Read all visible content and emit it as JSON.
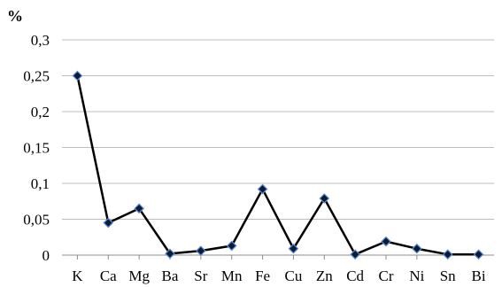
{
  "chart_data": {
    "type": "line",
    "unit_label": "%",
    "categories": [
      "K",
      "Ca",
      "Mg",
      "Ba",
      "Sr",
      "Mn",
      "Fe",
      "Cu",
      "Zn",
      "Cd",
      "Cr",
      "Ni",
      "Sn",
      "Bi"
    ],
    "values": [
      0.25,
      0.045,
      0.065,
      0.002,
      0.006,
      0.013,
      0.092,
      0.009,
      0.079,
      0.001,
      0.019,
      0.009,
      0.001,
      0.001
    ],
    "y_ticks": [
      "0",
      "0,05",
      "0,1",
      "0,15",
      "0,2",
      "0,25",
      "0,3"
    ],
    "y_tick_values": [
      0,
      0.05,
      0.1,
      0.15,
      0.2,
      0.25,
      0.3
    ],
    "ylim": [
      0,
      0.3
    ],
    "grid": true,
    "legend": "none",
    "line_color": "#000000",
    "marker_fill": "#0d1a33",
    "marker_edge": "#5a8ad6"
  }
}
